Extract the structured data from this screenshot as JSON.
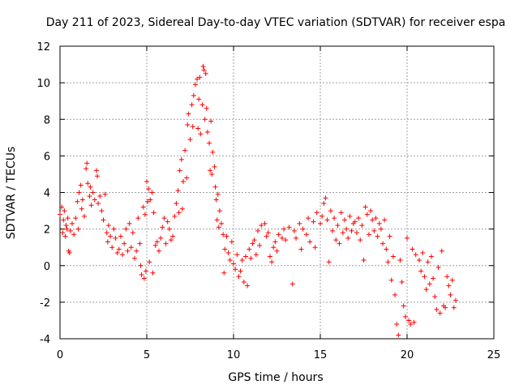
{
  "chart_data": {
    "type": "scatter",
    "title": "Day 211 of 2023, Sidereal Day-to-day VTEC variation (SDTVAR) for receiver espa",
    "xlabel": "GPS time / hours",
    "ylabel": "SDTVAR / TECUs",
    "xlim": [
      0,
      25
    ],
    "ylim": [
      -4,
      12
    ],
    "xticks": [
      0,
      5,
      10,
      15,
      20,
      25
    ],
    "yticks": [
      -4,
      -2,
      0,
      2,
      4,
      6,
      8,
      10,
      12
    ],
    "grid": true,
    "marker": "+",
    "color": "#ff0000",
    "series": [
      {
        "name": "SDTVAR",
        "points": [
          [
            0.0,
            2.8
          ],
          [
            0.1,
            3.2
          ],
          [
            0.15,
            1.8
          ],
          [
            0.2,
            2.5
          ],
          [
            0.25,
            3.0
          ],
          [
            0.3,
            1.6
          ],
          [
            0.35,
            2.2
          ],
          [
            0.4,
            2.0
          ],
          [
            0.45,
            2.6
          ],
          [
            0.5,
            0.8
          ],
          [
            0.55,
            0.7
          ],
          [
            0.6,
            1.9
          ],
          [
            0.7,
            2.3
          ],
          [
            0.8,
            1.7
          ],
          [
            0.9,
            2.6
          ],
          [
            1.0,
            3.5
          ],
          [
            1.05,
            2.0
          ],
          [
            1.1,
            4.0
          ],
          [
            1.2,
            4.4
          ],
          [
            1.25,
            3.1
          ],
          [
            1.3,
            3.6
          ],
          [
            1.4,
            2.7
          ],
          [
            1.5,
            5.3
          ],
          [
            1.55,
            5.6
          ],
          [
            1.6,
            4.5
          ],
          [
            1.7,
            3.8
          ],
          [
            1.75,
            4.3
          ],
          [
            1.8,
            3.3
          ],
          [
            1.9,
            4.0
          ],
          [
            2.0,
            3.6
          ],
          [
            2.1,
            5.2
          ],
          [
            2.15,
            4.9
          ],
          [
            2.2,
            3.4
          ],
          [
            2.3,
            3.8
          ],
          [
            2.4,
            3.0
          ],
          [
            2.5,
            2.5
          ],
          [
            2.6,
            3.9
          ],
          [
            2.7,
            1.8
          ],
          [
            2.75,
            1.3
          ],
          [
            2.8,
            2.2
          ],
          [
            2.9,
            1.6
          ],
          [
            3.0,
            1.0
          ],
          [
            3.1,
            2.0
          ],
          [
            3.2,
            1.5
          ],
          [
            3.3,
            0.7
          ],
          [
            3.4,
            0.9
          ],
          [
            3.5,
            1.6
          ],
          [
            3.6,
            0.6
          ],
          [
            3.7,
            1.2
          ],
          [
            3.8,
            2.0
          ],
          [
            3.9,
            0.8
          ],
          [
            4.0,
            2.3
          ],
          [
            4.1,
            1.0
          ],
          [
            4.2,
            1.8
          ],
          [
            4.3,
            0.4
          ],
          [
            4.4,
            0.8
          ],
          [
            4.5,
            2.6
          ],
          [
            4.6,
            1.2
          ],
          [
            4.65,
            0.0
          ],
          [
            4.7,
            -0.5
          ],
          [
            4.8,
            3.2
          ],
          [
            4.85,
            -0.7
          ],
          [
            4.9,
            2.8
          ],
          [
            4.95,
            -0.3
          ],
          [
            5.0,
            4.6
          ],
          [
            5.05,
            3.5
          ],
          [
            5.1,
            4.2
          ],
          [
            5.15,
            0.2
          ],
          [
            5.2,
            3.6
          ],
          [
            5.3,
            4.0
          ],
          [
            5.35,
            -0.4
          ],
          [
            5.4,
            2.9
          ],
          [
            5.5,
            1.1
          ],
          [
            5.6,
            1.3
          ],
          [
            5.7,
            0.8
          ],
          [
            5.8,
            1.5
          ],
          [
            5.9,
            2.1
          ],
          [
            6.0,
            2.6
          ],
          [
            6.1,
            1.2
          ],
          [
            6.2,
            2.4
          ],
          [
            6.3,
            2.0
          ],
          [
            6.4,
            1.4
          ],
          [
            6.5,
            1.6
          ],
          [
            6.6,
            2.7
          ],
          [
            6.7,
            3.4
          ],
          [
            6.8,
            4.1
          ],
          [
            6.85,
            2.9
          ],
          [
            6.9,
            5.2
          ],
          [
            7.0,
            5.8
          ],
          [
            7.05,
            3.1
          ],
          [
            7.1,
            4.6
          ],
          [
            7.2,
            6.3
          ],
          [
            7.3,
            4.8
          ],
          [
            7.35,
            7.7
          ],
          [
            7.4,
            8.3
          ],
          [
            7.5,
            6.9
          ],
          [
            7.6,
            8.8
          ],
          [
            7.65,
            7.6
          ],
          [
            7.7,
            9.3
          ],
          [
            7.8,
            9.9
          ],
          [
            7.9,
            10.2
          ],
          [
            7.95,
            7.5
          ],
          [
            8.0,
            9.1
          ],
          [
            8.05,
            10.3
          ],
          [
            8.1,
            7.2
          ],
          [
            8.2,
            8.8
          ],
          [
            8.25,
            10.9
          ],
          [
            8.3,
            10.7
          ],
          [
            8.35,
            8.0
          ],
          [
            8.4,
            10.5
          ],
          [
            8.45,
            8.6
          ],
          [
            8.5,
            7.3
          ],
          [
            8.6,
            6.7
          ],
          [
            8.65,
            5.2
          ],
          [
            8.7,
            7.9
          ],
          [
            8.75,
            5.0
          ],
          [
            8.8,
            6.2
          ],
          [
            8.9,
            5.4
          ],
          [
            8.95,
            4.3
          ],
          [
            9.0,
            3.6
          ],
          [
            9.05,
            2.5
          ],
          [
            9.1,
            3.9
          ],
          [
            9.15,
            2.1
          ],
          [
            9.2,
            3.0
          ],
          [
            9.3,
            2.3
          ],
          [
            9.4,
            1.7
          ],
          [
            9.45,
            -0.4
          ],
          [
            9.5,
            0.9
          ],
          [
            9.6,
            1.6
          ],
          [
            9.7,
            0.7
          ],
          [
            9.8,
            0.3
          ],
          [
            9.9,
            1.3
          ],
          [
            10.0,
            0.1
          ],
          [
            10.1,
            -0.2
          ],
          [
            10.2,
            0.6
          ],
          [
            10.3,
            -0.6
          ],
          [
            10.4,
            -0.3
          ],
          [
            10.5,
            0.3
          ],
          [
            10.6,
            -0.9
          ],
          [
            10.7,
            0.5
          ],
          [
            10.8,
            -1.1
          ],
          [
            10.9,
            0.9
          ],
          [
            11.0,
            0.4
          ],
          [
            11.1,
            1.2
          ],
          [
            11.2,
            1.4
          ],
          [
            11.3,
            0.6
          ],
          [
            11.4,
            1.9
          ],
          [
            11.5,
            1.1
          ],
          [
            11.6,
            2.2
          ],
          [
            11.8,
            2.3
          ],
          [
            11.9,
            1.6
          ],
          [
            12.0,
            1.8
          ],
          [
            12.1,
            0.5
          ],
          [
            12.2,
            0.2
          ],
          [
            12.3,
            1.0
          ],
          [
            12.4,
            1.3
          ],
          [
            12.5,
            0.8
          ],
          [
            12.6,
            1.7
          ],
          [
            12.8,
            1.5
          ],
          [
            12.9,
            2.0
          ],
          [
            13.0,
            1.4
          ],
          [
            13.2,
            2.1
          ],
          [
            13.4,
            -1.0
          ],
          [
            13.5,
            1.9
          ],
          [
            13.6,
            1.5
          ],
          [
            13.8,
            2.3
          ],
          [
            13.9,
            0.9
          ],
          [
            14.0,
            2.0
          ],
          [
            14.2,
            1.7
          ],
          [
            14.3,
            2.6
          ],
          [
            14.4,
            1.3
          ],
          [
            14.6,
            2.4
          ],
          [
            14.7,
            1.0
          ],
          [
            14.8,
            2.9
          ],
          [
            15.0,
            2.3
          ],
          [
            15.1,
            2.7
          ],
          [
            15.2,
            3.4
          ],
          [
            15.3,
            3.7
          ],
          [
            15.4,
            2.5
          ],
          [
            15.5,
            0.2
          ],
          [
            15.6,
            3.0
          ],
          [
            15.7,
            1.9
          ],
          [
            15.8,
            2.6
          ],
          [
            15.9,
            1.4
          ],
          [
            16.0,
            2.2
          ],
          [
            16.1,
            1.2
          ],
          [
            16.2,
            2.9
          ],
          [
            16.3,
            1.8
          ],
          [
            16.4,
            2.5
          ],
          [
            16.5,
            2.0
          ],
          [
            16.6,
            1.5
          ],
          [
            16.7,
            2.7
          ],
          [
            16.8,
            1.9
          ],
          [
            16.9,
            2.3
          ],
          [
            17.0,
            2.4
          ],
          [
            17.1,
            1.8
          ],
          [
            17.2,
            2.6
          ],
          [
            17.3,
            1.4
          ],
          [
            17.4,
            2.2
          ],
          [
            17.5,
            0.3
          ],
          [
            17.6,
            3.2
          ],
          [
            17.7,
            2.8
          ],
          [
            17.8,
            1.7
          ],
          [
            17.9,
            3.0
          ],
          [
            18.0,
            2.5
          ],
          [
            18.1,
            1.9
          ],
          [
            18.2,
            2.6
          ],
          [
            18.3,
            1.6
          ],
          [
            18.4,
            2.3
          ],
          [
            18.5,
            2.0
          ],
          [
            18.6,
            1.2
          ],
          [
            18.7,
            2.5
          ],
          [
            18.8,
            0.9
          ],
          [
            18.9,
            0.2
          ],
          [
            19.0,
            1.6
          ],
          [
            19.1,
            -0.8
          ],
          [
            19.2,
            0.5
          ],
          [
            19.3,
            -1.6
          ],
          [
            19.4,
            -3.2
          ],
          [
            19.5,
            -3.8
          ],
          [
            19.6,
            0.3
          ],
          [
            19.7,
            -0.9
          ],
          [
            19.8,
            -2.2
          ],
          [
            19.9,
            -2.8
          ],
          [
            20.0,
            1.5
          ],
          [
            20.1,
            -3.0
          ],
          [
            20.2,
            -3.2
          ],
          [
            20.3,
            0.9
          ],
          [
            20.4,
            -3.1
          ],
          [
            20.5,
            0.6
          ],
          [
            20.7,
            0.3
          ],
          [
            20.8,
            -0.3
          ],
          [
            20.9,
            0.7
          ],
          [
            21.0,
            -0.6
          ],
          [
            21.1,
            -1.3
          ],
          [
            21.2,
            0.2
          ],
          [
            21.3,
            -1.0
          ],
          [
            21.4,
            0.5
          ],
          [
            21.5,
            -0.7
          ],
          [
            21.6,
            -1.7
          ],
          [
            21.7,
            -2.4
          ],
          [
            21.8,
            -0.1
          ],
          [
            21.9,
            -2.6
          ],
          [
            22.0,
            0.8
          ],
          [
            22.1,
            -2.2
          ],
          [
            22.2,
            -2.3
          ],
          [
            22.3,
            -0.6
          ],
          [
            22.4,
            -1.1
          ],
          [
            22.5,
            -1.6
          ],
          [
            22.6,
            -0.8
          ],
          [
            22.7,
            -2.3
          ],
          [
            22.8,
            -1.9
          ]
        ]
      }
    ]
  }
}
